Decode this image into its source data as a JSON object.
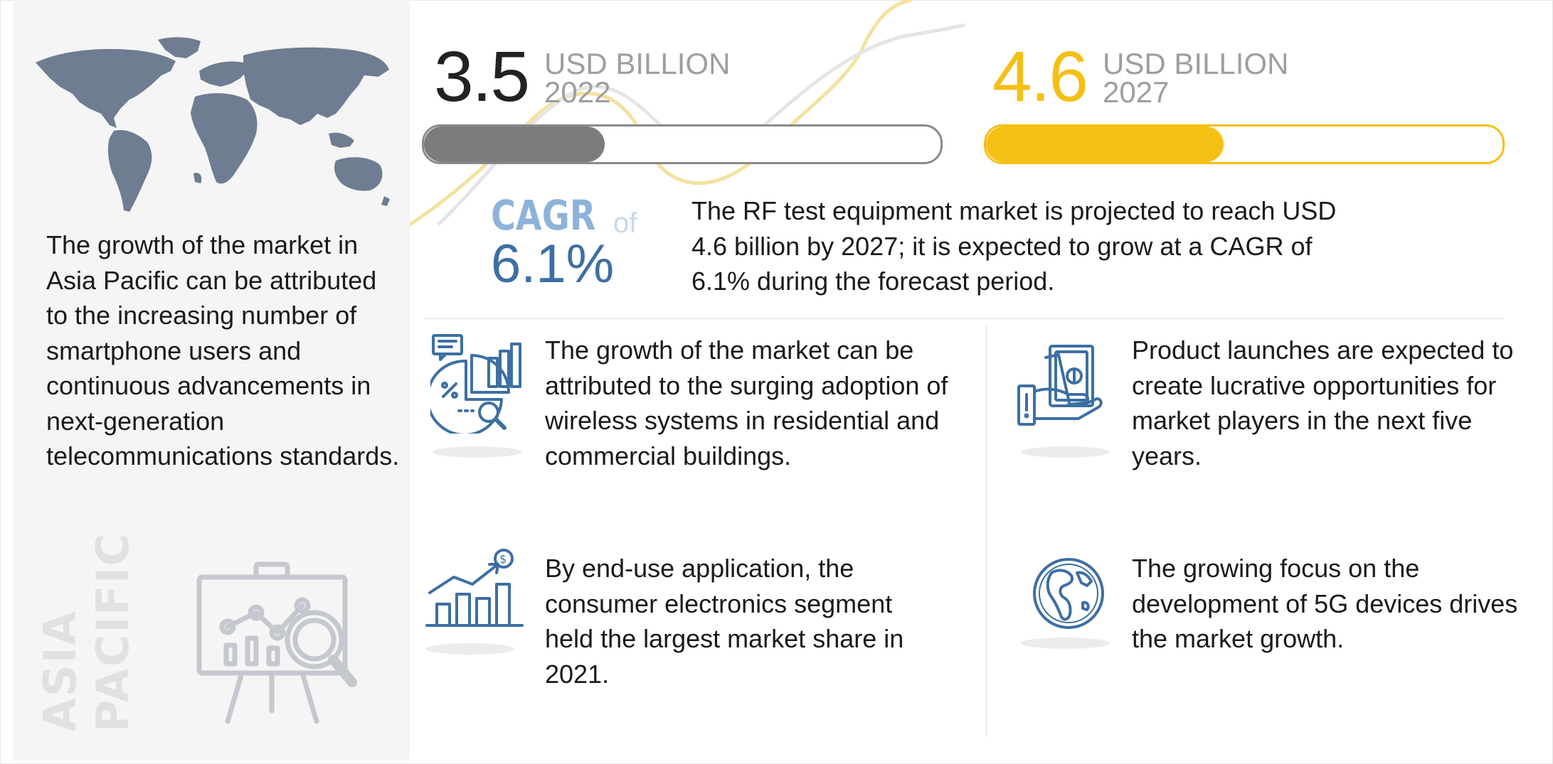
{
  "market": {
    "start": {
      "value": "3.5",
      "unit": "USD BILLION",
      "year": "2022"
    },
    "end": {
      "value": "4.6",
      "unit": "USD BILLION",
      "year": "2027"
    },
    "start_bar_fill_fraction": 0.35,
    "end_bar_fill_fraction": 0.46
  },
  "cagr": {
    "label": "CAGR",
    "of": "of",
    "value": "6.1%"
  },
  "summary": "The RF test equipment market is projected to reach USD 4.6 billion by 2027; it is expected to grow at a CAGR of 6.1% during the forecast period.",
  "region": {
    "label_line1": "ASIA",
    "label_line2": "PACIFIC",
    "text": "The growth of the market in Asia Pacific can be attributed to the increasing number of smartphone users and continuous advancements in next-generation telecommunications standards."
  },
  "insights": [
    {
      "icon": "analytics-report-icon",
      "text": "The growth of the market can be attributed to the surging adoption of wireless systems in residential and commercial buildings."
    },
    {
      "icon": "money-hand-icon",
      "text": "Product launches are expected to create lucrative opportunities for market players in the next five years."
    },
    {
      "icon": "growth-chart-icon",
      "text": "By end-use application, the consumer electronics segment held the largest market share in 2021."
    },
    {
      "icon": "globe-icon",
      "text": "The growing focus on the development of 5G devices drives the market growth."
    }
  ],
  "colors": {
    "accent_yellow": "#f5bf14",
    "accent_blue": "#3d6fa3",
    "cagr_label": "#8eb3d8",
    "bar_grey": "#7c7c7c",
    "map_fill": "#6e7d91",
    "panel_bg": "#f5f5f5"
  }
}
